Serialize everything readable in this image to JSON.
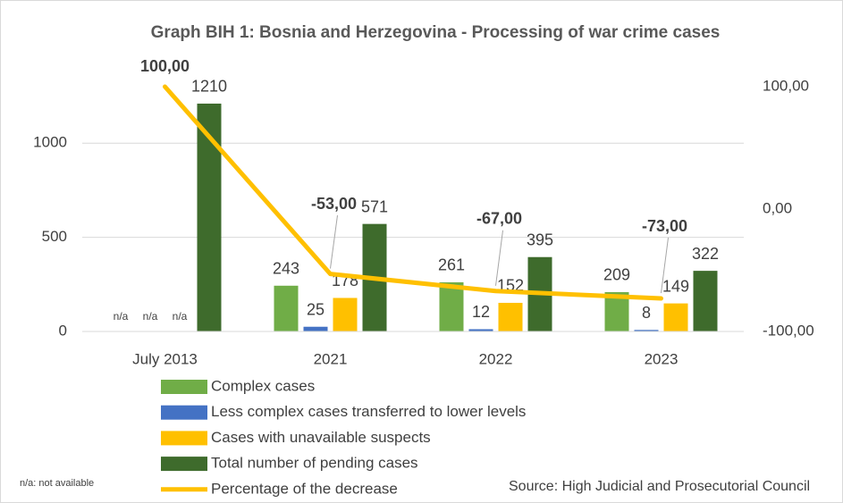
{
  "chart_data": {
    "type": "bar",
    "title": "Graph BIH 1: Bosnia and Herzegovina - Processing of war crime cases",
    "categories": [
      "July 2013",
      "2021",
      "2022",
      "2023"
    ],
    "series": [
      {
        "name": "Complex cases",
        "type": "bar",
        "color": "#70ad47",
        "values": [
          null,
          243,
          261,
          209
        ],
        "value_labels": [
          "n/a",
          "243",
          "261",
          "209"
        ]
      },
      {
        "name": "Less complex cases transferred to lower levels",
        "type": "bar",
        "color": "#4472c4",
        "values": [
          null,
          25,
          12,
          8
        ],
        "value_labels": [
          "n/a",
          "25",
          "12",
          "8"
        ]
      },
      {
        "name": "Cases with unavailable suspects",
        "type": "bar",
        "color": "#ffc000",
        "values": [
          null,
          178,
          152,
          149
        ],
        "value_labels": [
          "n/a",
          "178",
          "152",
          "149"
        ]
      },
      {
        "name": "Total number of pending cases",
        "type": "bar",
        "color": "#3e6b2c",
        "values": [
          1210,
          571,
          395,
          322
        ]
      },
      {
        "name": "Percentage of the decrease",
        "type": "line",
        "axis": "y2",
        "color": "#ffc000",
        "values": [
          100,
          -53,
          -67,
          -73
        ],
        "value_labels": [
          "100,00",
          "-53,00",
          "-67,00",
          "-73,00"
        ]
      }
    ],
    "ylim": [
      0,
      1300
    ],
    "yticks": [
      0,
      500,
      1000
    ],
    "y2lim": [
      -100,
      100
    ],
    "y2ticks": [
      {
        "value": -100,
        "label": "-100,00"
      },
      {
        "value": 0,
        "label": "0,00"
      },
      {
        "value": 100,
        "label": "100,00"
      }
    ],
    "grid": true,
    "legend": "bottom",
    "annotations": [
      "n/a: not available",
      "Source: High Judicial and Prosecutorial Council"
    ]
  }
}
